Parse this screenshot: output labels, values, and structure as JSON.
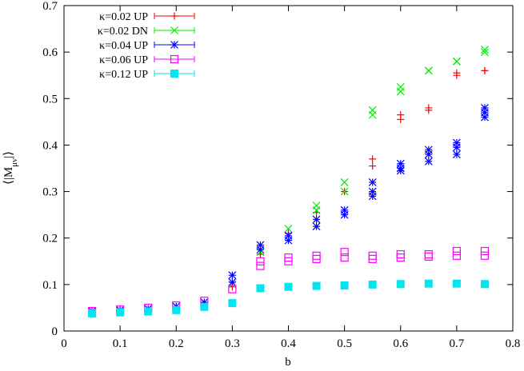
{
  "chart_data": {
    "type": "scatter",
    "title": "",
    "xlabel": "b",
    "ylabel_main": "⟨|M",
    "ylabel_sub": "μν",
    "ylabel_end": "|⟩",
    "xlim": [
      0,
      0.8
    ],
    "ylim": [
      0,
      0.7
    ],
    "xticks": [
      0,
      0.1,
      0.2,
      0.3,
      0.4,
      0.5,
      0.6,
      0.7,
      0.8
    ],
    "xtick_labels": [
      "0",
      "0.1",
      "0.2",
      "0.3",
      "0.4",
      "0.5",
      "0.6",
      "0.7",
      "0.8"
    ],
    "yticks": [
      0,
      0.1,
      0.2,
      0.3,
      0.4,
      0.5,
      0.6,
      0.7
    ],
    "ytick_labels": [
      "0",
      "0.1",
      "0.2",
      "0.3",
      "0.4",
      "0.5",
      "0.6",
      "0.7"
    ],
    "grid": false,
    "legend_position": "top-left",
    "series": [
      {
        "name": "κ=0.02 UP",
        "color": "#ff0000",
        "marker": "plus",
        "points": [
          [
            0.3,
            0.095
          ],
          [
            0.35,
            0.165
          ],
          [
            0.4,
            0.21
          ],
          [
            0.45,
            0.255
          ],
          [
            0.5,
            0.3
          ],
          [
            0.55,
            0.37
          ],
          [
            0.55,
            0.355
          ],
          [
            0.6,
            0.465
          ],
          [
            0.6,
            0.455
          ],
          [
            0.65,
            0.48
          ],
          [
            0.65,
            0.475
          ],
          [
            0.7,
            0.55
          ],
          [
            0.7,
            0.555
          ],
          [
            0.75,
            0.56
          ],
          [
            0.75,
            0.56
          ]
        ]
      },
      {
        "name": "κ=0.02 DN",
        "color": "#00ee00",
        "marker": "x",
        "points": [
          [
            0.3,
            0.1
          ],
          [
            0.35,
            0.17
          ],
          [
            0.4,
            0.22
          ],
          [
            0.45,
            0.27
          ],
          [
            0.45,
            0.26
          ],
          [
            0.5,
            0.32
          ],
          [
            0.5,
            0.3
          ],
          [
            0.55,
            0.475
          ],
          [
            0.55,
            0.465
          ],
          [
            0.6,
            0.525
          ],
          [
            0.6,
            0.515
          ],
          [
            0.65,
            0.56
          ],
          [
            0.65,
            0.56
          ],
          [
            0.7,
            0.58
          ],
          [
            0.7,
            0.58
          ],
          [
            0.75,
            0.6
          ],
          [
            0.75,
            0.605
          ]
        ]
      },
      {
        "name": "κ=0.04 UP",
        "color": "#0000ff",
        "marker": "star",
        "points": [
          [
            0.05,
            0.043
          ],
          [
            0.1,
            0.045
          ],
          [
            0.15,
            0.048
          ],
          [
            0.2,
            0.053
          ],
          [
            0.25,
            0.062
          ],
          [
            0.3,
            0.12
          ],
          [
            0.3,
            0.105
          ],
          [
            0.35,
            0.185
          ],
          [
            0.35,
            0.175
          ],
          [
            0.4,
            0.205
          ],
          [
            0.4,
            0.195
          ],
          [
            0.45,
            0.24
          ],
          [
            0.45,
            0.225
          ],
          [
            0.5,
            0.26
          ],
          [
            0.5,
            0.25
          ],
          [
            0.55,
            0.32
          ],
          [
            0.55,
            0.3
          ],
          [
            0.55,
            0.29
          ],
          [
            0.6,
            0.36
          ],
          [
            0.6,
            0.35
          ],
          [
            0.6,
            0.345
          ],
          [
            0.65,
            0.39
          ],
          [
            0.65,
            0.38
          ],
          [
            0.65,
            0.365
          ],
          [
            0.7,
            0.405
          ],
          [
            0.7,
            0.395
          ],
          [
            0.7,
            0.38
          ],
          [
            0.75,
            0.48
          ],
          [
            0.75,
            0.47
          ],
          [
            0.75,
            0.46
          ]
        ]
      },
      {
        "name": "κ=0.06 UP",
        "color": "#ff00ff",
        "marker": "square-open",
        "points": [
          [
            0.05,
            0.043
          ],
          [
            0.1,
            0.046
          ],
          [
            0.15,
            0.05
          ],
          [
            0.2,
            0.055
          ],
          [
            0.25,
            0.065
          ],
          [
            0.3,
            0.09
          ],
          [
            0.35,
            0.15
          ],
          [
            0.35,
            0.14
          ],
          [
            0.4,
            0.158
          ],
          [
            0.4,
            0.15
          ],
          [
            0.45,
            0.162
          ],
          [
            0.45,
            0.155
          ],
          [
            0.5,
            0.17
          ],
          [
            0.5,
            0.158
          ],
          [
            0.55,
            0.162
          ],
          [
            0.55,
            0.155
          ],
          [
            0.6,
            0.165
          ],
          [
            0.6,
            0.158
          ],
          [
            0.65,
            0.165
          ],
          [
            0.65,
            0.16
          ],
          [
            0.7,
            0.172
          ],
          [
            0.7,
            0.162
          ],
          [
            0.75,
            0.172
          ],
          [
            0.75,
            0.162
          ]
        ]
      },
      {
        "name": "κ=0.12 UP",
        "color": "#00e5ee",
        "marker": "square-filled",
        "points": [
          [
            0.05,
            0.038
          ],
          [
            0.1,
            0.04
          ],
          [
            0.15,
            0.042
          ],
          [
            0.2,
            0.045
          ],
          [
            0.25,
            0.052
          ],
          [
            0.3,
            0.06
          ],
          [
            0.35,
            0.092
          ],
          [
            0.4,
            0.095
          ],
          [
            0.45,
            0.097
          ],
          [
            0.5,
            0.098
          ],
          [
            0.55,
            0.1
          ],
          [
            0.6,
            0.101
          ],
          [
            0.65,
            0.102
          ],
          [
            0.7,
            0.102
          ],
          [
            0.75,
            0.101
          ]
        ]
      }
    ]
  }
}
